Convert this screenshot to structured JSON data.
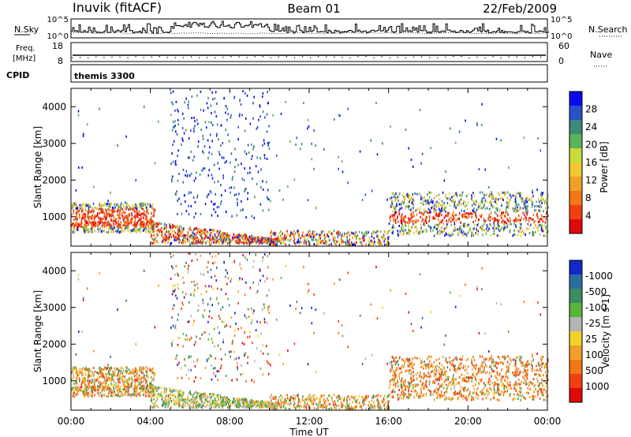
{
  "header": {
    "station": "Inuvik (fitACF)",
    "beam": "Beam 01",
    "date": "22/Feb/2009"
  },
  "status_panels": {
    "nsky_label": "N.Sky",
    "nsky_ticks": [
      "10^5",
      "10^0"
    ],
    "nsearch_label": "N.Search",
    "nsearch_ticks": [
      "10^5",
      "10^0"
    ],
    "freq_label": "Freq.",
    "freq_unit": "[MHz]",
    "freq_ticks": [
      "18",
      "8"
    ],
    "nave_label": "Nave",
    "nave_ticks": [
      "60",
      "0"
    ],
    "cpid_label": "CPID",
    "cpid_value": "themis 3300"
  },
  "chart_data": [
    {
      "type": "heatmap",
      "name": "power-panel",
      "x_ticks": [
        "00:00",
        "04:00",
        "08:00",
        "12:00",
        "16:00",
        "20:00",
        "00:00"
      ],
      "xlim_hours": [
        0,
        24
      ],
      "ylabel": "Slant Range [km]",
      "ylim_km": [
        200,
        4500
      ],
      "y_ticks": [
        1000,
        2000,
        3000,
        4000
      ],
      "colorbar": {
        "label": "Power [dB]",
        "ticks": [
          "4",
          "8",
          "12",
          "16",
          "20",
          "24",
          "28"
        ],
        "colors": [
          "#0a0af0",
          "#2a50c8",
          "#3c8a78",
          "#5ab45a",
          "#c8dc3c",
          "#f0c830",
          "#f0a028",
          "#f07818",
          "#f04010",
          "#e00808"
        ]
      }
    },
    {
      "type": "heatmap",
      "name": "velocity-panel",
      "x_ticks": [
        "00:00",
        "04:00",
        "08:00",
        "12:00",
        "16:00",
        "20:00",
        "00:00"
      ],
      "xlim_hours": [
        0,
        24
      ],
      "ylabel": "Slant Range [km]",
      "ylim_km": [
        200,
        4500
      ],
      "y_ticks": [
        1000,
        2000,
        3000,
        4000
      ],
      "xlabel": "Time UT",
      "colorbar": {
        "label": "Velocity [m s-1]",
        "ticks": [
          "1000",
          "500",
          "100",
          "25",
          "-25",
          "-100",
          "-500",
          "-1000"
        ],
        "colors": [
          "#1428c8",
          "#2a6ea0",
          "#3c8c64",
          "#5ab43c",
          "#b4b4b4",
          "#f0d228",
          "#f0a028",
          "#f07818",
          "#f04010",
          "#e00808"
        ]
      }
    }
  ]
}
